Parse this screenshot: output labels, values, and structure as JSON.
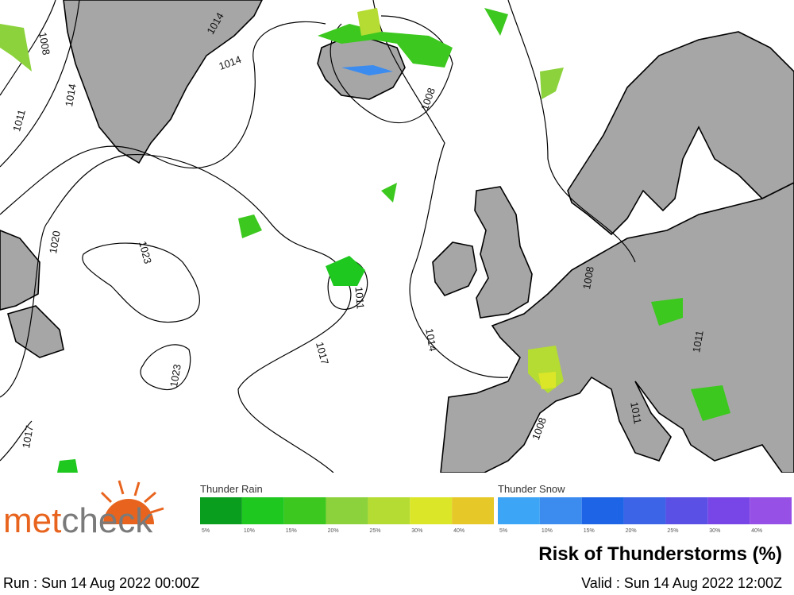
{
  "brand": {
    "left": "met",
    "right": "check"
  },
  "map": {
    "isobar_labels": [
      "1008",
      "1014",
      "1014",
      "1014",
      "1011",
      "1008",
      "1020",
      "1023",
      "1011",
      "1017",
      "1014",
      "1023",
      "1017",
      "1008",
      "1011",
      "1008",
      "1011"
    ]
  },
  "legend": {
    "rain": {
      "title": "Thunder Rain",
      "steps": [
        {
          "label": "5%",
          "color": "#0a9e1e"
        },
        {
          "label": "10%",
          "color": "#1ec81e"
        },
        {
          "label": "15%",
          "color": "#3cc81e"
        },
        {
          "label": "20%",
          "color": "#8cd23c"
        },
        {
          "label": "25%",
          "color": "#b4dc32"
        },
        {
          "label": "30%",
          "color": "#dce628"
        },
        {
          "label": "40%",
          "color": "#e6c828"
        }
      ]
    },
    "snow": {
      "title": "Thunder Snow",
      "steps": [
        {
          "label": "5%",
          "color": "#3ca5f5"
        },
        {
          "label": "10%",
          "color": "#3c8cf0"
        },
        {
          "label": "15%",
          "color": "#1e64e6"
        },
        {
          "label": "20%",
          "color": "#3c64e6"
        },
        {
          "label": "25%",
          "color": "#5a50e6"
        },
        {
          "label": "30%",
          "color": "#7846e6"
        },
        {
          "label": "40%",
          "color": "#9650e6"
        }
      ]
    }
  },
  "title": "Risk of Thunderstorms (%)",
  "run": "Run : Sun 14 Aug 2022 00:00Z",
  "valid": "Valid : Sun 14 Aug 2022 12:00Z"
}
